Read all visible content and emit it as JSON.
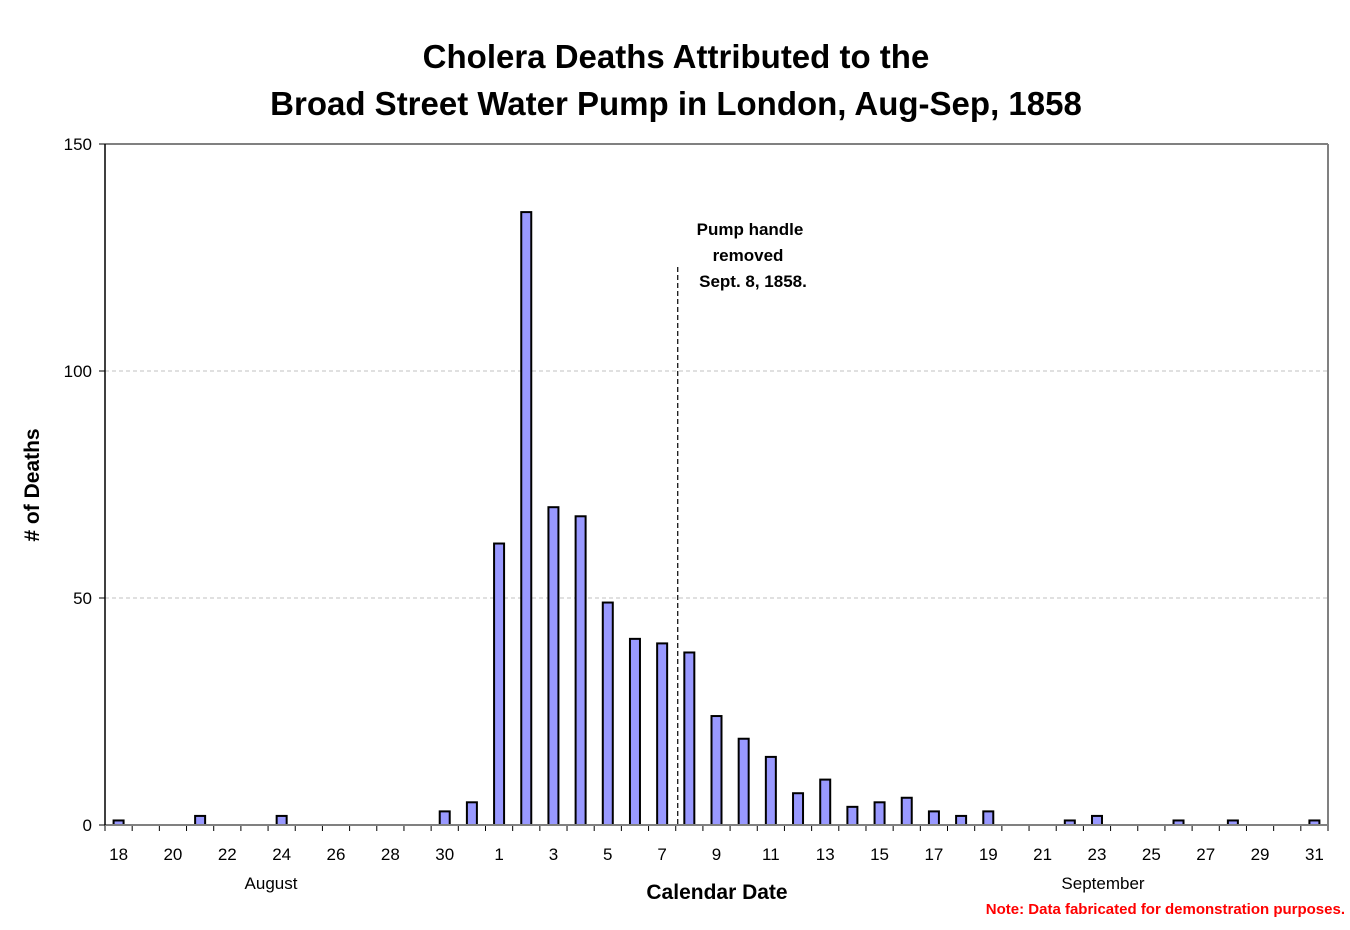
{
  "chart_data": {
    "type": "bar",
    "title_lines": [
      "Cholera Deaths Attributed to the",
      "Broad Street Water Pump in London, Aug-Sep, 1858"
    ],
    "xlabel": "Calendar Date",
    "ylabel": "# of Deaths",
    "ylim": [
      0,
      150
    ],
    "yticks": [
      0,
      50,
      100,
      150
    ],
    "grid": "horizontal dashed",
    "months": [
      {
        "name": "August",
        "first_day": 18,
        "last_day": 31
      },
      {
        "name": "September",
        "first_day": 1,
        "last_day": 31
      }
    ],
    "categories": [
      "Aug 18",
      "Aug 19",
      "Aug 20",
      "Aug 21",
      "Aug 22",
      "Aug 23",
      "Aug 24",
      "Aug 25",
      "Aug 26",
      "Aug 27",
      "Aug 28",
      "Aug 29",
      "Aug 30",
      "Aug 31",
      "Sep 1",
      "Sep 2",
      "Sep 3",
      "Sep 4",
      "Sep 5",
      "Sep 6",
      "Sep 7",
      "Sep 8",
      "Sep 9",
      "Sep 10",
      "Sep 11",
      "Sep 12",
      "Sep 13",
      "Sep 14",
      "Sep 15",
      "Sep 16",
      "Sep 17",
      "Sep 18",
      "Sep 19",
      "Sep 20",
      "Sep 21",
      "Sep 22",
      "Sep 23",
      "Sep 24",
      "Sep 25",
      "Sep 26",
      "Sep 27",
      "Sep 28",
      "Sep 29",
      "Sep 30",
      "Sep 31"
    ],
    "tick_labels": [
      "18",
      "",
      "20",
      "",
      "22",
      "",
      "24",
      "",
      "26",
      "",
      "28",
      "",
      "30",
      "",
      "1",
      "",
      "3",
      "",
      "5",
      "",
      "7",
      "",
      "9",
      "",
      "11",
      "",
      "13",
      "",
      "15",
      "",
      "17",
      "",
      "19",
      "",
      "21",
      "",
      "23",
      "",
      "25",
      "",
      "27",
      "",
      "29",
      "",
      "31"
    ],
    "series": [
      {
        "name": "Deaths",
        "color": "#9999ff",
        "values": [
          1,
          0,
          0,
          2,
          0,
          0,
          2,
          0,
          0,
          0,
          0,
          0,
          3,
          5,
          62,
          135,
          70,
          68,
          49,
          41,
          40,
          38,
          24,
          19,
          15,
          7,
          10,
          4,
          5,
          6,
          3,
          2,
          3,
          0,
          0,
          1,
          2,
          0,
          0,
          1,
          0,
          1,
          0,
          0,
          1
        ]
      }
    ],
    "annotation": {
      "lines": [
        "Pump handle",
        "removed",
        "Sept. 8, 1858."
      ],
      "marker_after_category": "Sep 7"
    },
    "note": {
      "text": "Note: Data fabricated for demonstration purposes.",
      "color": "#ff0000"
    }
  }
}
